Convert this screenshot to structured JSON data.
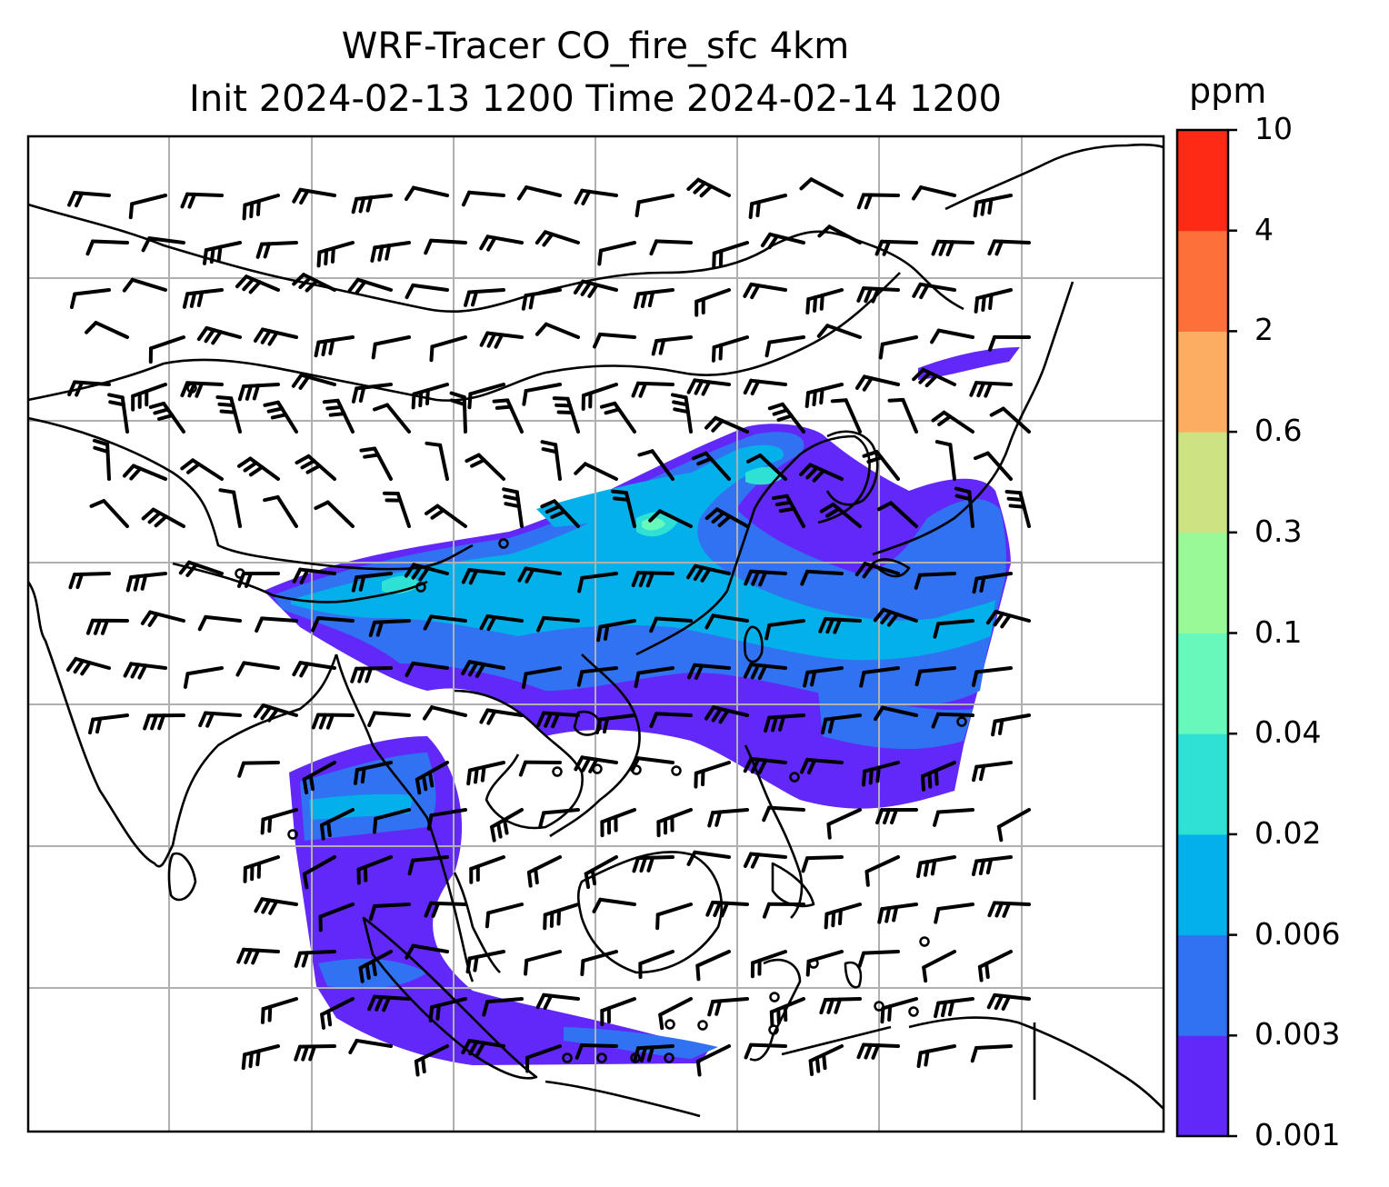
{
  "title": {
    "line1": "WRF-Tracer CO_fire_sfc 4km",
    "line2": "Init 2024-02-13 1200 Time 2024-02-14 1200"
  },
  "colorbar": {
    "unit": "ppm",
    "ticks": [
      "0.001",
      "0.003",
      "0.006",
      "0.02",
      "0.04",
      "0.1",
      "0.3",
      "0.6",
      "2",
      "4",
      "10"
    ],
    "colors": [
      "#6128f8",
      "#3172f2",
      "#04b0ea",
      "#2fe0d5",
      "#67f9bc",
      "#99f996",
      "#cde283",
      "#fcad61",
      "#fd7039",
      "#ff2a16"
    ]
  },
  "map": {
    "gridlines": "on",
    "coastline_color": "#000000",
    "grid_color": "#b0b0b0",
    "field_levels": [
      "0.001-0.003",
      "0.003-0.006",
      "0.006-0.02",
      "0.02-0.04",
      "0.04-0.1"
    ],
    "field_colors": [
      "#6128f8",
      "#3172f2",
      "#04b0ea",
      "#2fe0d5",
      "#67f9bc"
    ],
    "wind_barbs": "black"
  }
}
